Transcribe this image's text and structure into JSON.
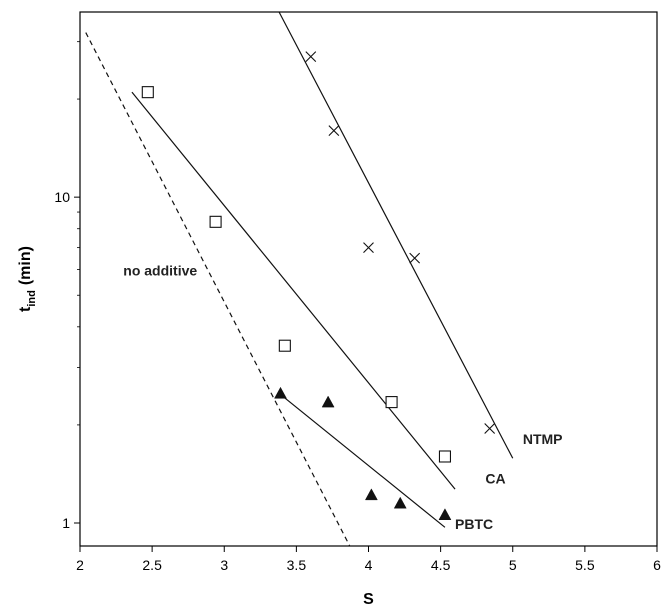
{
  "chart_data": {
    "type": "scatter",
    "xlabel": "S",
    "ylabel": {
      "main": "t",
      "sub": "ind",
      "unit": "(min)"
    },
    "xlim": [
      2,
      6
    ],
    "ylim": [
      0.85,
      37
    ],
    "y_scale": "log",
    "x_ticks": [
      2,
      2.5,
      3,
      3.5,
      4,
      4.5,
      5,
      5.5,
      6
    ],
    "x_tick_labels": [
      "2",
      "2.5",
      "3",
      "3.5",
      "4",
      "4.5",
      "5",
      "5.5",
      "6"
    ],
    "y_ticks": [
      1,
      10
    ],
    "y_tick_labels": [
      "1",
      "10"
    ],
    "grid": false,
    "legend": "none",
    "series": [
      {
        "name": "NTMP",
        "marker": "x",
        "points": [
          {
            "x": 3.6,
            "y": 27
          },
          {
            "x": 3.76,
            "y": 16
          },
          {
            "x": 4.0,
            "y": 7
          },
          {
            "x": 4.32,
            "y": 6.5
          },
          {
            "x": 4.84,
            "y": 1.95
          }
        ],
        "fit": {
          "x": [
            3.38,
            5.0
          ],
          "y": [
            37,
            1.58
          ]
        },
        "label_at": {
          "x": 5.07,
          "y": 1.75
        }
      },
      {
        "name": "CA",
        "marker": "open-square",
        "points": [
          {
            "x": 2.47,
            "y": 21
          },
          {
            "x": 2.94,
            "y": 8.4
          },
          {
            "x": 3.42,
            "y": 3.5
          },
          {
            "x": 4.16,
            "y": 2.35
          },
          {
            "x": 4.53,
            "y": 1.6
          }
        ],
        "fit": {
          "x": [
            2.36,
            4.6
          ],
          "y": [
            21,
            1.27
          ]
        },
        "label_at": {
          "x": 4.81,
          "y": 1.32
        }
      },
      {
        "name": "PBTC",
        "marker": "filled-triangle",
        "points": [
          {
            "x": 3.39,
            "y": 2.5
          },
          {
            "x": 3.72,
            "y": 2.35
          },
          {
            "x": 4.02,
            "y": 1.22
          },
          {
            "x": 4.22,
            "y": 1.15
          },
          {
            "x": 4.53,
            "y": 1.06
          }
        ],
        "fit": {
          "x": [
            3.38,
            4.53
          ],
          "y": [
            2.5,
            0.97
          ]
        },
        "label_at": {
          "x": 4.6,
          "y": 0.96
        }
      },
      {
        "name": "no additive",
        "marker": "none",
        "line_style": "dashed",
        "points": [],
        "fit": {
          "x": [
            2.04,
            3.87
          ],
          "y": [
            32,
            0.85
          ]
        },
        "label_at": {
          "x": 2.3,
          "y": 5.75
        }
      }
    ],
    "colors": {
      "axis": "#000000",
      "series": "#111111",
      "label": "#222222"
    }
  }
}
